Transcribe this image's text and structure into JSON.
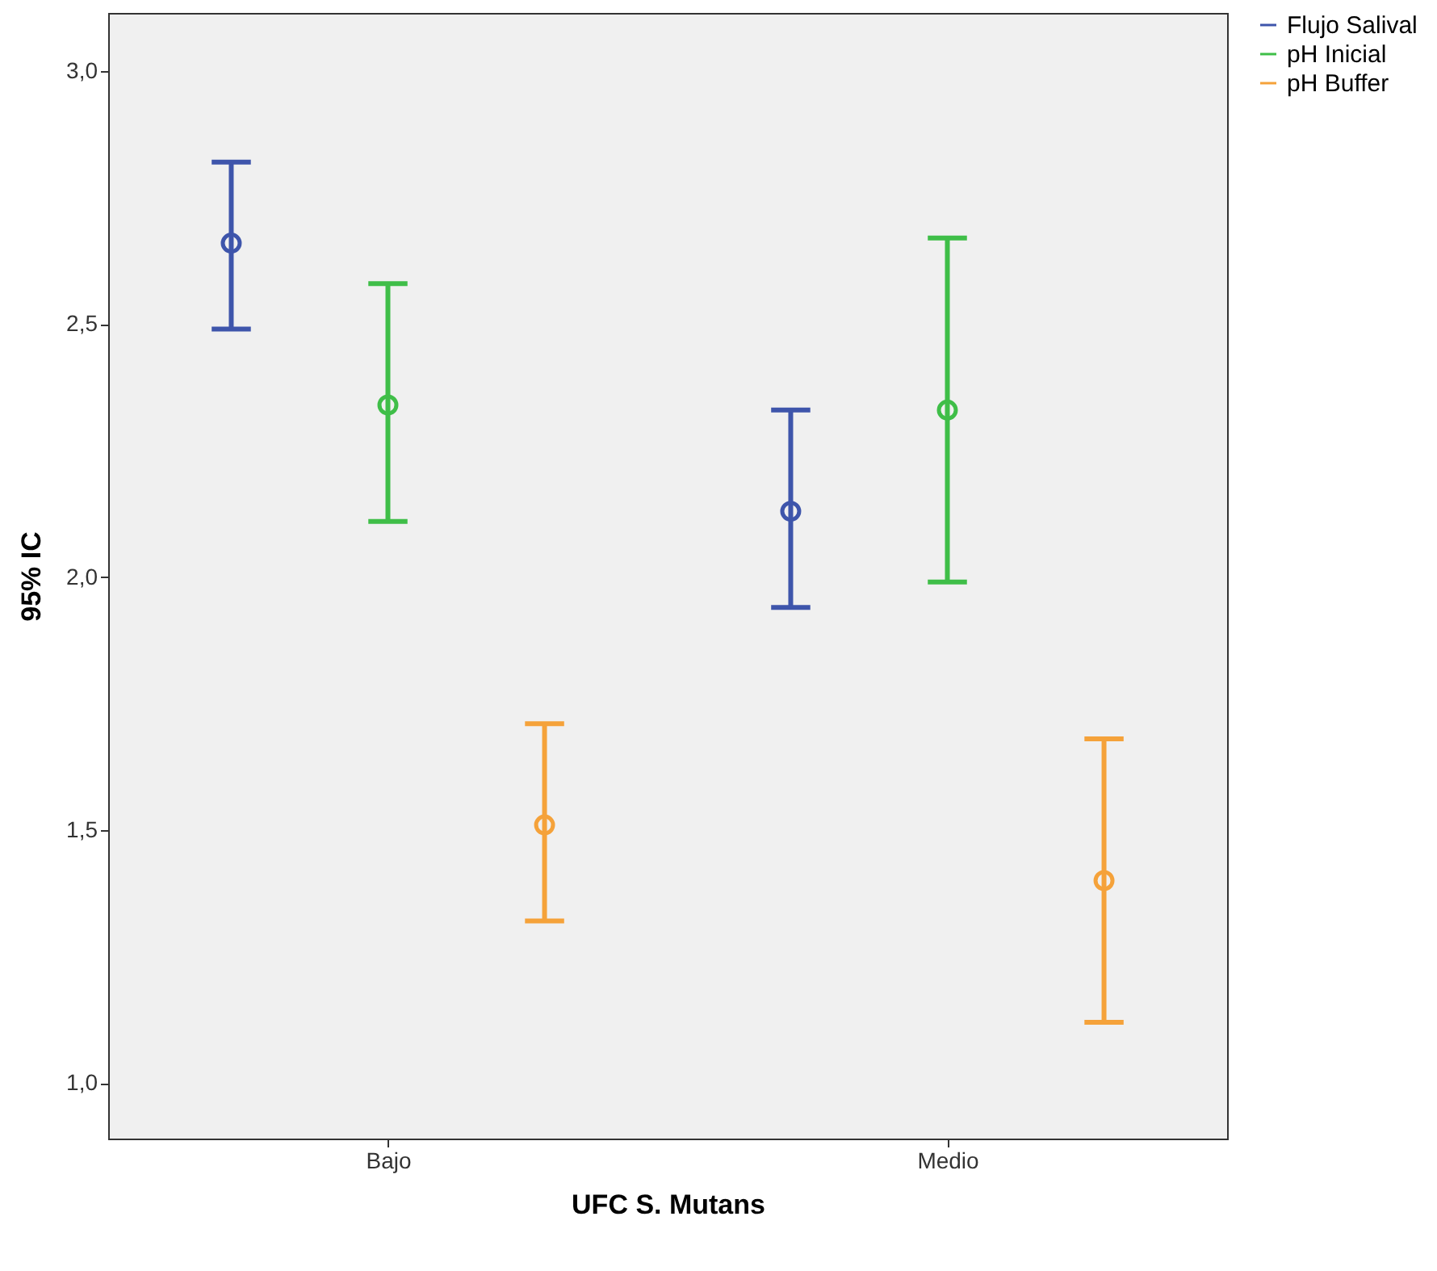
{
  "chart_data": {
    "type": "scatter",
    "xlabel": "UFC S. Mutans",
    "ylabel": "95% IC",
    "categories": [
      "Bajo",
      "Medio"
    ],
    "series": [
      {
        "name": "Flujo Salival",
        "color": "#3e55ab",
        "values": [
          2.66,
          2.13
        ],
        "errors": [
          [
            2.49,
            2.82
          ],
          [
            1.94,
            2.33
          ]
        ]
      },
      {
        "name": "pH Inicial",
        "color": "#3fbe48",
        "values": [
          2.34,
          2.33
        ],
        "errors": [
          [
            2.11,
            2.58
          ],
          [
            1.99,
            2.67
          ]
        ]
      },
      {
        "name": "pH Buffer",
        "color": "#f5a23a",
        "values": [
          1.51,
          1.4
        ],
        "errors": [
          [
            1.32,
            1.71
          ],
          [
            1.12,
            1.68
          ]
        ]
      }
    ],
    "ylim": [
      0.89,
      3.115
    ],
    "yticks": [
      {
        "value": 1,
        "label": "1,0"
      },
      {
        "value": 1.5,
        "label": "1,5"
      },
      {
        "value": 2,
        "label": "2,0"
      },
      {
        "value": 2.5,
        "label": "2,5"
      },
      {
        "value": 3,
        "label": "3,0"
      }
    ],
    "marker": "circle",
    "grid": false,
    "legend": "top right"
  }
}
